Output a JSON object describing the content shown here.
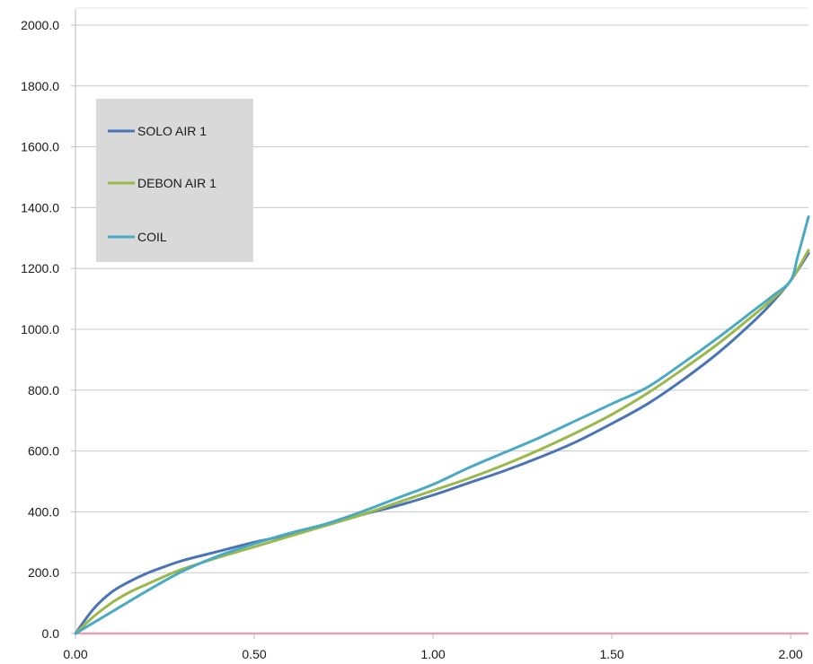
{
  "chart_data": {
    "type": "line",
    "title": "",
    "xlabel": "",
    "ylabel": "",
    "xlim": [
      0,
      2.05
    ],
    "ylim": [
      0,
      2000
    ],
    "x_ticks": [
      "0.00",
      "0.50",
      "1.00",
      "1.50",
      "2.00"
    ],
    "x_tick_values": [
      0,
      0.5,
      1.0,
      1.5,
      2.0
    ],
    "y_ticks": [
      "0.0",
      "200.0",
      "400.0",
      "600.0",
      "800.0",
      "1000.0",
      "1200.0",
      "1400.0",
      "1600.0",
      "1800.0",
      "2000.0"
    ],
    "y_tick_values": [
      0,
      200,
      400,
      600,
      800,
      1000,
      1200,
      1400,
      1600,
      1800,
      2000
    ],
    "grid": "horizontal",
    "legend": "top-left",
    "baseline": {
      "y": 0,
      "color": "#e8a0b4"
    },
    "series": [
      {
        "name": "SOLO AIR 1",
        "color": "#4a74b5",
        "x": [
          0,
          0.05,
          0.1,
          0.15,
          0.2,
          0.25,
          0.3,
          0.4,
          0.5,
          0.6,
          0.7,
          0.8,
          0.9,
          1.0,
          1.1,
          1.2,
          1.3,
          1.4,
          1.5,
          1.6,
          1.7,
          1.8,
          1.9,
          1.95,
          2.0,
          2.05
        ],
        "y": [
          0,
          80,
          135,
          170,
          198,
          220,
          240,
          270,
          300,
          325,
          355,
          390,
          420,
          455,
          495,
          535,
          580,
          630,
          690,
          755,
          835,
          925,
          1030,
          1090,
          1160,
          1250
        ]
      },
      {
        "name": "DEBON AIR 1",
        "color": "#9bb84a",
        "x": [
          0,
          0.05,
          0.1,
          0.15,
          0.2,
          0.25,
          0.3,
          0.4,
          0.5,
          0.6,
          0.7,
          0.8,
          0.9,
          1.0,
          1.1,
          1.2,
          1.3,
          1.4,
          1.5,
          1.6,
          1.7,
          1.8,
          1.9,
          1.95,
          2.0,
          2.05
        ],
        "y": [
          0,
          55,
          100,
          135,
          162,
          188,
          212,
          250,
          285,
          320,
          355,
          390,
          430,
          470,
          510,
          555,
          605,
          660,
          720,
          790,
          870,
          955,
          1050,
          1100,
          1160,
          1260
        ]
      },
      {
        "name": "COIL",
        "color": "#4aaac4",
        "x": [
          0,
          0.1,
          0.2,
          0.3,
          0.4,
          0.5,
          0.6,
          0.7,
          0.8,
          0.9,
          1.0,
          1.1,
          1.2,
          1.3,
          1.4,
          1.5,
          1.6,
          1.7,
          1.8,
          1.9,
          1.95,
          2.0,
          2.02,
          2.05
        ],
        "y": [
          0,
          70,
          140,
          205,
          255,
          295,
          330,
          360,
          400,
          445,
          490,
          545,
          595,
          645,
          700,
          755,
          810,
          890,
          975,
          1065,
          1110,
          1160,
          1240,
          1370
        ]
      }
    ]
  }
}
